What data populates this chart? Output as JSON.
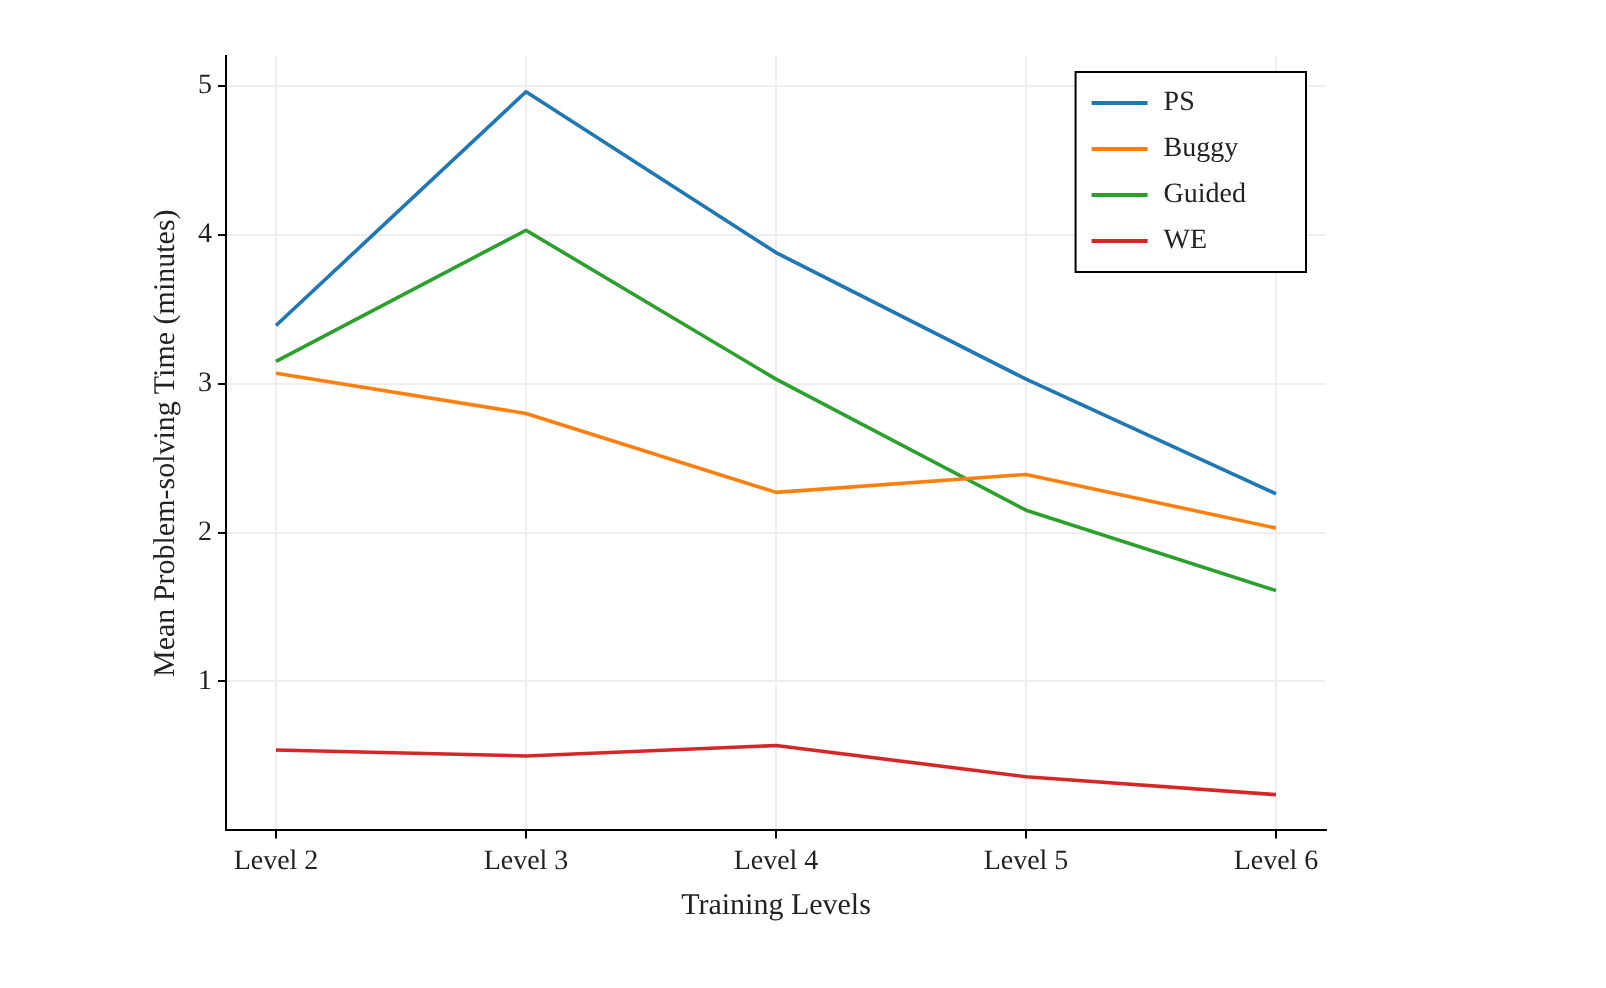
{
  "chart_data": {
    "type": "line",
    "xlabel": "Training Levels",
    "ylabel": "Mean Problem-solving Time (minutes)",
    "categories": [
      "Level 2",
      "Level 3",
      "Level 4",
      "Level 5",
      "Level 6"
    ],
    "series": [
      {
        "name": "PS",
        "color": "#1f77b4",
        "values": [
          3.39,
          4.96,
          3.88,
          3.03,
          2.26
        ]
      },
      {
        "name": "Buggy",
        "color": "#ff7f0e",
        "values": [
          3.07,
          2.8,
          2.27,
          2.39,
          2.03
        ]
      },
      {
        "name": "Guided",
        "color": "#2ca02c",
        "values": [
          3.15,
          4.03,
          3.03,
          2.15,
          1.61
        ]
      },
      {
        "name": "WE",
        "color": "#d62728",
        "values": [
          0.54,
          0.5,
          0.57,
          0.36,
          0.24
        ]
      }
    ],
    "ylim": [
      0,
      5.2
    ],
    "yticks": [
      1,
      2,
      3,
      4,
      5
    ],
    "grid": true,
    "legend": "top right",
    "line_style": "solid",
    "marker": "none"
  }
}
